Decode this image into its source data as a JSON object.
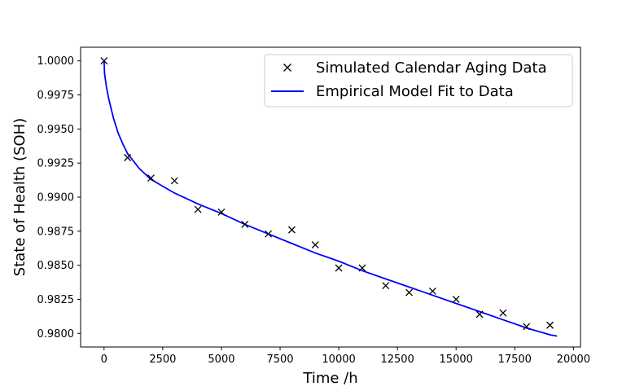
{
  "chart_data": {
    "type": "scatter",
    "xlabel": "Time /h",
    "ylabel": "State of Health (SOH)",
    "xlim": [
      -1000,
      20300
    ],
    "ylim": [
      0.979,
      1.001
    ],
    "x_ticks": [
      0,
      2500,
      5000,
      7500,
      10000,
      12500,
      15000,
      17500,
      20000
    ],
    "x_tick_labels": [
      "0",
      "2500",
      "5000",
      "7500",
      "10000",
      "12500",
      "15000",
      "17500",
      "20000"
    ],
    "y_ticks": [
      0.98,
      0.9825,
      0.985,
      0.9875,
      0.99,
      0.9925,
      0.995,
      0.9975,
      1.0
    ],
    "y_tick_labels": [
      "0.9800",
      "0.9825",
      "0.9850",
      "0.9875",
      "0.9900",
      "0.9925",
      "0.9950",
      "0.9975",
      "1.0000"
    ],
    "grid": false,
    "legend_position": "top-right",
    "series": [
      {
        "name": "Simulated Calendar Aging Data",
        "kind": "markers",
        "marker": "x",
        "color": "#000000",
        "points": [
          [
            0,
            1.0
          ],
          [
            1000,
            0.9929
          ],
          [
            2000,
            0.9914
          ],
          [
            3000,
            0.9912
          ],
          [
            4000,
            0.9891
          ],
          [
            5000,
            0.9889
          ],
          [
            6000,
            0.988
          ],
          [
            7000,
            0.9873
          ],
          [
            8000,
            0.9876
          ],
          [
            9000,
            0.9865
          ],
          [
            10000,
            0.9848
          ],
          [
            11000,
            0.9848
          ],
          [
            12000,
            0.9835
          ],
          [
            13000,
            0.983
          ],
          [
            14000,
            0.9831
          ],
          [
            15000,
            0.9825
          ],
          [
            16000,
            0.9814
          ],
          [
            17000,
            0.9815
          ],
          [
            18000,
            0.9805
          ],
          [
            19000,
            0.9806
          ]
        ]
      },
      {
        "name": "Empirical Model Fit to Data",
        "kind": "line",
        "color": "#0000ff",
        "points": [
          [
            0,
            1.0
          ],
          [
            20,
            0.9991
          ],
          [
            50,
            0.9987
          ],
          [
            100,
            0.9981
          ],
          [
            200,
            0.9972
          ],
          [
            400,
            0.9958
          ],
          [
            600,
            0.9947
          ],
          [
            800,
            0.9939
          ],
          [
            1000,
            0.9932
          ],
          [
            1500,
            0.9921
          ],
          [
            2000,
            0.9913
          ],
          [
            3000,
            0.9903
          ],
          [
            4000,
            0.9895
          ],
          [
            5000,
            0.9888
          ],
          [
            6000,
            0.988
          ],
          [
            7000,
            0.9873
          ],
          [
            8000,
            0.9866
          ],
          [
            9000,
            0.9859
          ],
          [
            10000,
            0.9853
          ],
          [
            11000,
            0.9846
          ],
          [
            12000,
            0.984
          ],
          [
            13000,
            0.9834
          ],
          [
            14000,
            0.9828
          ],
          [
            15000,
            0.9822
          ],
          [
            16000,
            0.9816
          ],
          [
            17000,
            0.981
          ],
          [
            18000,
            0.9804
          ],
          [
            19000,
            0.9799
          ],
          [
            19300,
            0.9798
          ]
        ]
      }
    ]
  }
}
